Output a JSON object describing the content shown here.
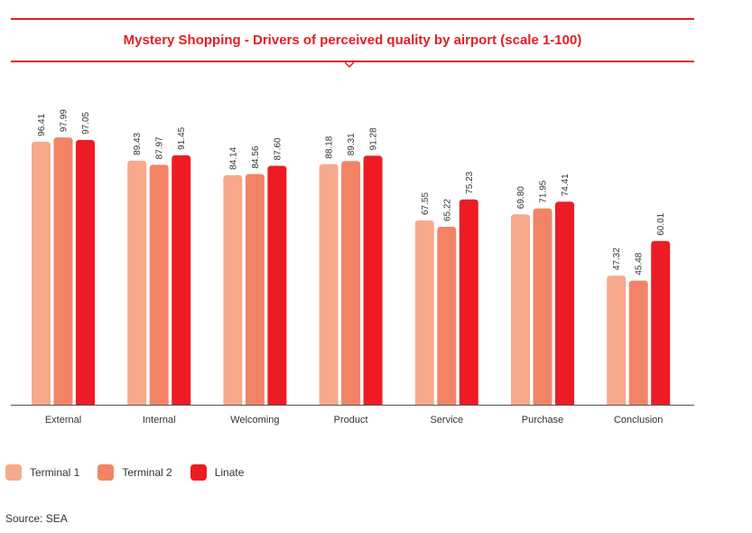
{
  "chart_data": {
    "type": "bar",
    "title": "Mystery Shopping - Drivers of perceived quality by airport (scale 1-100)",
    "categories": [
      "External",
      "Internal",
      "Welcoming",
      "Product",
      "Service",
      "Purchase",
      "Conclusion"
    ],
    "series": [
      {
        "name": "Terminal 1",
        "color": "#f7a98c",
        "values": [
          96.41,
          89.43,
          84.14,
          88.18,
          67.55,
          69.8,
          47.32
        ]
      },
      {
        "name": "Terminal 2",
        "color": "#f28465",
        "values": [
          97.99,
          87.97,
          84.56,
          89.31,
          65.22,
          71.95,
          45.48
        ]
      },
      {
        "name": "Linate",
        "color": "#ed1c24",
        "values": [
          97.05,
          91.45,
          87.6,
          91.28,
          75.23,
          74.41,
          60.01
        ]
      }
    ],
    "value_labels": [
      [
        "96.41",
        "89.43",
        "84.14",
        "88.18",
        "67.55",
        "69.80",
        "47.32"
      ],
      [
        "97.99",
        "87.97",
        "84.56",
        "89.31",
        "65.22",
        "71.95",
        "45.48"
      ],
      [
        "97.05",
        "91.45",
        "87.60",
        "91.28",
        "75.23",
        "74.41",
        "60.01"
      ]
    ],
    "ylim": [
      0,
      100
    ],
    "grid": false,
    "legend": "bottom-left"
  },
  "footer": {
    "source": "Source: SEA"
  }
}
